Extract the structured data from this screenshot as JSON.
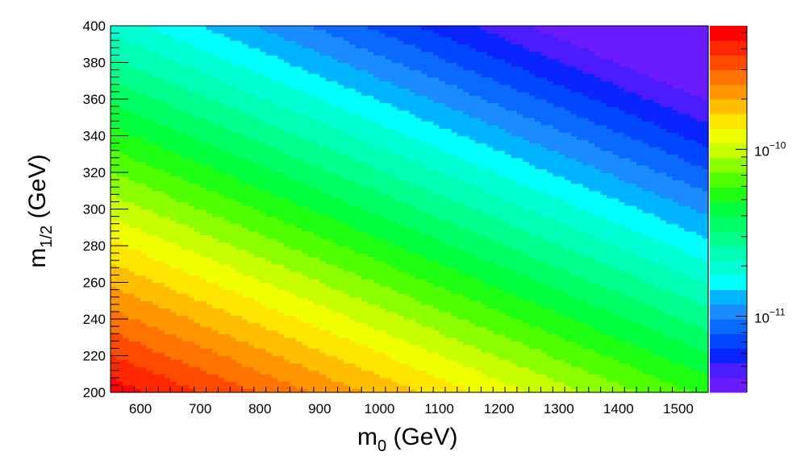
{
  "chart_data": {
    "type": "heatmap",
    "subtype": "filled-contour",
    "title": "",
    "xlabel": {
      "main": "m",
      "sub": "0",
      "unit": " (GeV)"
    },
    "ylabel": {
      "main": "m",
      "sub": "1/2",
      "unit": " (GeV)"
    },
    "xlim": [
      550,
      1550
    ],
    "ylim": [
      200,
      400
    ],
    "x_ticks": [
      "600",
      "700",
      "800",
      "900",
      "1000",
      "1100",
      "1200",
      "1300",
      "1400",
      "1500"
    ],
    "y_ticks": [
      "200",
      "220",
      "240",
      "260",
      "280",
      "300",
      "320",
      "340",
      "360",
      "380",
      "400"
    ],
    "colorbar": {
      "scale": "log",
      "range": [
        3.5e-12,
        5.5e-10
      ],
      "ticks": [
        {
          "value": 1e-10,
          "base": "10",
          "exp": "−10"
        },
        {
          "value": 1e-11,
          "base": "10",
          "exp": "−11"
        }
      ],
      "colors": [
        "#6a1cff",
        "#4a1cff",
        "#0a24ff",
        "#0046ff",
        "#0a6aff",
        "#1a8cff",
        "#00b4ff",
        "#00ffff",
        "#00ffd2",
        "#00ffb4",
        "#00ff8c",
        "#00ff64",
        "#00ff3c",
        "#1eff14",
        "#50ff00",
        "#8cff00",
        "#c8ff00",
        "#f0ff00",
        "#ffe600",
        "#ffbe00",
        "#ff9600",
        "#ff7300",
        "#ff4b00",
        "#ff2800",
        "#ff0000"
      ]
    },
    "grid": false,
    "field_model": {
      "description": "log10 of the plotted quantity as a function of (m0, m1/2); contours are straight bands approximating the figure",
      "log10_at_origin": -9.29,
      "slope_per_GeV_m0": -0.00096,
      "slope_per_GeV_m12": -0.00703,
      "origin_m0": 550,
      "origin_m12": 200
    }
  }
}
